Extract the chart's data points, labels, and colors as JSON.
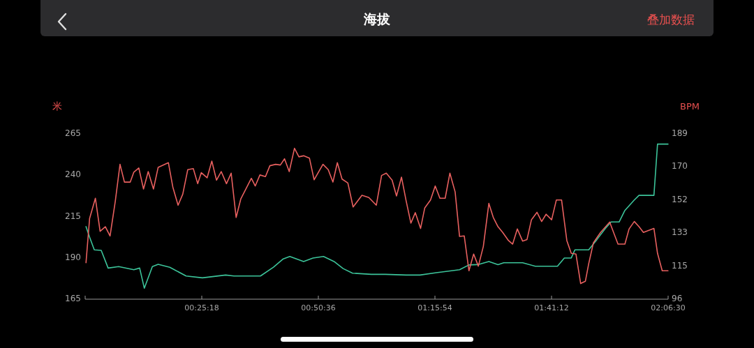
{
  "chart_data": {
    "type": "line",
    "title": "海拔",
    "annotations": [
      "叠加数据"
    ],
    "ylabel": "米",
    "y2label": "BPM",
    "xlim": [
      0,
      2.108333
    ],
    "xticks": [
      {
        "value": 0.421667,
        "label": "00:25:18"
      },
      {
        "value": 0.843333,
        "label": "00:50:36"
      },
      {
        "value": 1.265,
        "label": "01:15:54"
      },
      {
        "value": 1.686667,
        "label": "01:41:12"
      },
      {
        "value": 2.108333,
        "label": "02:06:30"
      }
    ],
    "ylim": [
      165,
      265
    ],
    "yticks": [
      165,
      190,
      215,
      240,
      265
    ],
    "y2lim": [
      96,
      189
    ],
    "y2ticks": [
      96,
      {
        "value": 114.6,
        "label": "115"
      },
      {
        "value": 133.2,
        "label": "133"
      },
      {
        "value": 151.8,
        "label": "152"
      },
      {
        "value": 170.4,
        "label": "170"
      },
      189
    ],
    "grid": false,
    "series": [
      {
        "color": "#3cc49a",
        "axis": "y",
        "x": [
          0.003,
          0.016,
          0.033,
          0.058,
          0.083,
          0.121,
          0.176,
          0.197,
          0.214,
          0.243,
          0.264,
          0.306,
          0.365,
          0.424,
          0.508,
          0.538,
          0.605,
          0.634,
          0.681,
          0.715,
          0.74,
          0.79,
          0.824,
          0.862,
          0.9,
          0.933,
          0.967,
          1.035,
          1.085,
          1.161,
          1.211,
          1.27,
          1.354,
          1.388,
          1.42,
          1.46,
          1.493,
          1.514,
          1.582,
          1.628,
          1.708,
          1.733,
          1.758,
          1.771,
          1.821,
          1.851,
          1.881,
          1.902,
          1.931,
          1.952,
          1.986,
          2.003,
          2.057,
          2.07,
          2.108
        ],
        "values": [
          208.5,
          202.1,
          194.4,
          194.1,
          183.4,
          184.3,
          182.4,
          183.4,
          171.2,
          184.3,
          185.7,
          183.9,
          178.6,
          177.5,
          179.2,
          178.6,
          178.6,
          178.6,
          183.9,
          188.8,
          190.4,
          187.4,
          189.5,
          190.4,
          187.4,
          183.1,
          180.3,
          179.6,
          179.6,
          179.2,
          179.2,
          180.6,
          182.4,
          185.3,
          185.5,
          187.4,
          185.5,
          186.6,
          186.6,
          184.5,
          184.5,
          189.5,
          189.5,
          194.4,
          194.4,
          200.7,
          207.3,
          211.3,
          211.3,
          218.3,
          224.6,
          227.4,
          227.4,
          258.4,
          258.4
        ]
      },
      {
        "color": "#e8605f",
        "axis": "y2",
        "x": [
          0.003,
          0.016,
          0.037,
          0.054,
          0.073,
          0.09,
          0.109,
          0.126,
          0.142,
          0.163,
          0.176,
          0.194,
          0.211,
          0.228,
          0.247,
          0.264,
          0.301,
          0.317,
          0.336,
          0.353,
          0.371,
          0.391,
          0.407,
          0.42,
          0.441,
          0.458,
          0.475,
          0.492,
          0.511,
          0.528,
          0.546,
          0.563,
          0.601,
          0.615,
          0.632,
          0.652,
          0.668,
          0.689,
          0.706,
          0.721,
          0.738,
          0.757,
          0.773,
          0.79,
          0.811,
          0.828,
          0.86,
          0.879,
          0.896,
          0.912,
          0.929,
          0.95,
          0.969,
          1.001,
          1.026,
          1.053,
          1.072,
          1.089,
          1.11,
          1.126,
          1.144,
          1.161,
          1.178,
          1.194,
          1.213,
          1.228,
          1.249,
          1.266,
          1.283,
          1.302,
          1.319,
          1.338,
          1.354,
          1.371,
          1.388,
          1.405,
          1.422,
          1.44,
          1.46,
          1.476,
          1.493,
          1.51,
          1.531,
          1.546,
          1.563,
          1.582,
          1.598,
          1.614,
          1.634,
          1.651,
          1.667,
          1.687,
          1.704,
          1.723,
          1.742,
          1.758,
          1.775,
          1.792,
          1.809,
          1.821,
          1.838,
          1.864,
          1.897,
          1.927,
          1.952,
          1.967,
          1.986,
          2.003,
          2.019,
          2.057,
          2.07,
          2.087,
          2.108
        ],
        "values": [
          116.1,
          141.0,
          152.4,
          133.8,
          136.4,
          131.2,
          150.8,
          171.5,
          161.5,
          161.5,
          167.1,
          169.4,
          157.6,
          167.4,
          157.6,
          169.8,
          172.4,
          158.7,
          148.5,
          154.7,
          168.5,
          169.1,
          160.6,
          166.8,
          163.9,
          173.3,
          162.6,
          167.4,
          160.6,
          166.5,
          141.6,
          152.1,
          163.6,
          159.3,
          165.5,
          164.6,
          170.7,
          171.5,
          171.1,
          174.6,
          167.4,
          180.5,
          175.7,
          176.3,
          175.0,
          162.8,
          171.5,
          168.5,
          161.5,
          172.4,
          163.2,
          161.0,
          147.5,
          154.1,
          152.8,
          148.5,
          165.2,
          166.5,
          162.6,
          153.7,
          164.3,
          150.8,
          138.4,
          144.3,
          135.4,
          146.9,
          151.4,
          159.3,
          152.4,
          152.4,
          166.5,
          156.0,
          130.9,
          131.2,
          111.6,
          121.0,
          114.2,
          125.3,
          149.5,
          141.6,
          136.4,
          133.2,
          128.6,
          126.6,
          135.1,
          128.3,
          129.2,
          140.3,
          144.5,
          139.3,
          143.4,
          140.3,
          151.4,
          151.4,
          128.6,
          121.4,
          121.0,
          104.4,
          105.7,
          115.5,
          127.3,
          133.2,
          139.0,
          126.6,
          126.6,
          135.1,
          139.3,
          136.4,
          133.2,
          135.4,
          121.4,
          111.6,
          111.6
        ]
      }
    ]
  }
}
